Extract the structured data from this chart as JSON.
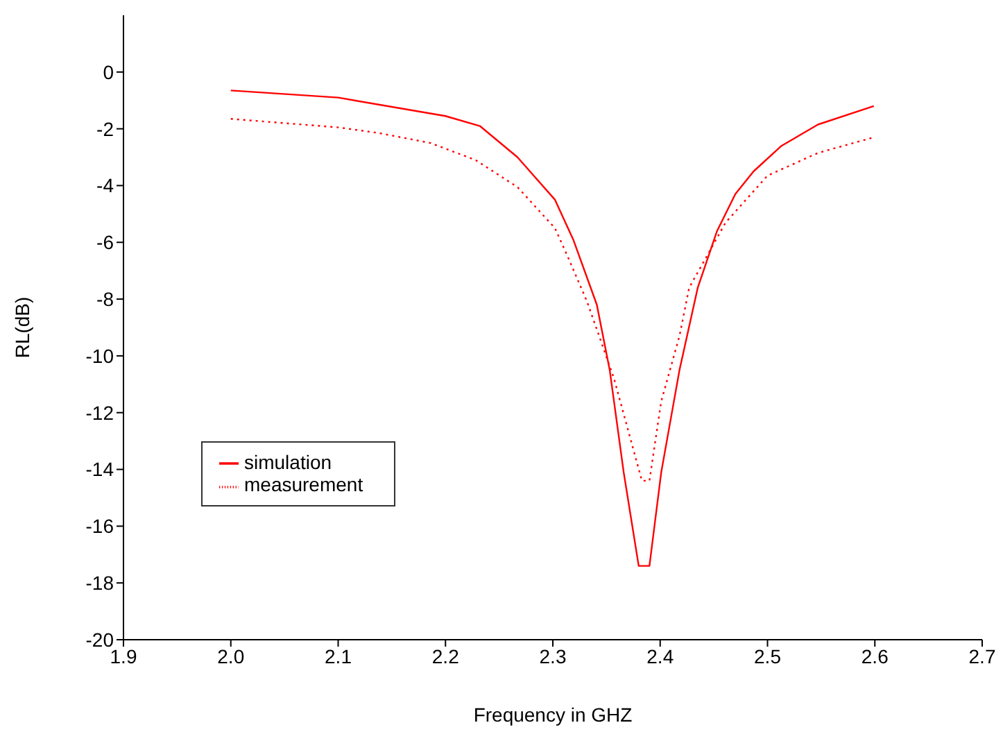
{
  "chart_data": {
    "type": "line",
    "xlabel": "Frequency in GHZ",
    "ylabel": "RL(dB)",
    "xlim": [
      1.9,
      2.7
    ],
    "xticks": [
      1.9,
      {
        "value": 2.0,
        "label": "2.0"
      },
      2.1,
      2.2,
      2.3,
      2.4,
      2.5,
      2.6,
      2.7
    ],
    "ylim": [
      -20,
      2
    ],
    "yticks": [
      -20,
      -18,
      -16,
      -14,
      -12,
      -10,
      -8,
      -6,
      -4,
      -2,
      0
    ],
    "grid": false,
    "legend": "bottom left",
    "marker": "none",
    "series": [
      {
        "name": "simulation",
        "color": "#ff0000",
        "line_style": "solid",
        "x": [
          2.0,
          2.1,
          2.2,
          2.232,
          2.267,
          2.302,
          2.319,
          2.341,
          2.353,
          2.366,
          2.38,
          2.39,
          2.401,
          2.418,
          2.435,
          2.453,
          2.47,
          2.487,
          2.513,
          2.547,
          2.599
        ],
        "values": [
          -0.65,
          -0.9,
          -1.55,
          -1.9,
          -3.0,
          -4.5,
          -5.9,
          -8.2,
          -10.5,
          -14.1,
          -17.4,
          -17.4,
          -14.1,
          -10.5,
          -7.6,
          -5.6,
          -4.3,
          -3.5,
          -2.6,
          -1.85,
          -1.2
        ]
      },
      {
        "name": "measurement",
        "color": "#ff0000",
        "line_style": "dotted",
        "x": [
          2.0,
          2.1,
          2.138,
          2.186,
          2.228,
          2.267,
          2.302,
          2.315,
          2.332,
          2.357,
          2.37,
          2.383,
          2.39,
          2.401,
          2.418,
          2.427,
          2.461,
          2.5,
          2.547,
          2.599
        ],
        "values": [
          -1.65,
          -1.95,
          -2.15,
          -2.5,
          -3.1,
          -4.05,
          -5.5,
          -6.6,
          -8.1,
          -10.8,
          -12.6,
          -14.4,
          -14.4,
          -11.6,
          -9.3,
          -7.6,
          -5.3,
          -3.65,
          -2.85,
          -2.3
        ]
      }
    ]
  }
}
